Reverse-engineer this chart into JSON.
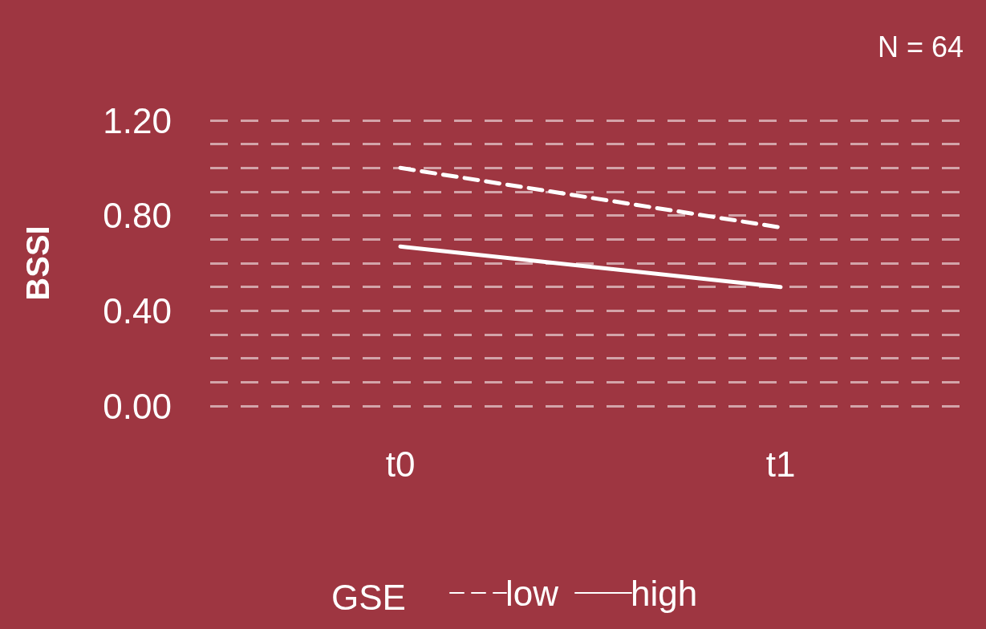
{
  "chart_data": {
    "type": "line",
    "ylabel": "BSSI",
    "legend_title": "GSE",
    "annotations": [
      "N = 64"
    ],
    "categories": [
      "t0",
      "t1"
    ],
    "series": [
      {
        "name": "low",
        "color": "#ffffff",
        "line_style": "dashed",
        "values": [
          1.0,
          0.75
        ]
      },
      {
        "name": "high",
        "color": "#ffffff",
        "line_style": "solid",
        "values": [
          0.67,
          0.5
        ]
      }
    ],
    "ylim": [
      0,
      1.2
    ],
    "yticks": [
      {
        "value": 0,
        "label": "0.00"
      },
      {
        "value": 0.1,
        "label": null
      },
      {
        "value": 0.2,
        "label": null
      },
      {
        "value": 0.3,
        "label": null
      },
      {
        "value": 0.4,
        "label": "0.40"
      },
      {
        "value": 0.5,
        "label": null
      },
      {
        "value": 0.6,
        "label": null
      },
      {
        "value": 0.7,
        "label": null
      },
      {
        "value": 0.8,
        "label": "0.80"
      },
      {
        "value": 0.9,
        "label": null
      },
      {
        "value": 1.0,
        "label": null
      },
      {
        "value": 1.1,
        "label": null
      },
      {
        "value": 1.2,
        "label": "1.20"
      }
    ],
    "grid": true,
    "legend": "bottom",
    "marker": "none"
  }
}
